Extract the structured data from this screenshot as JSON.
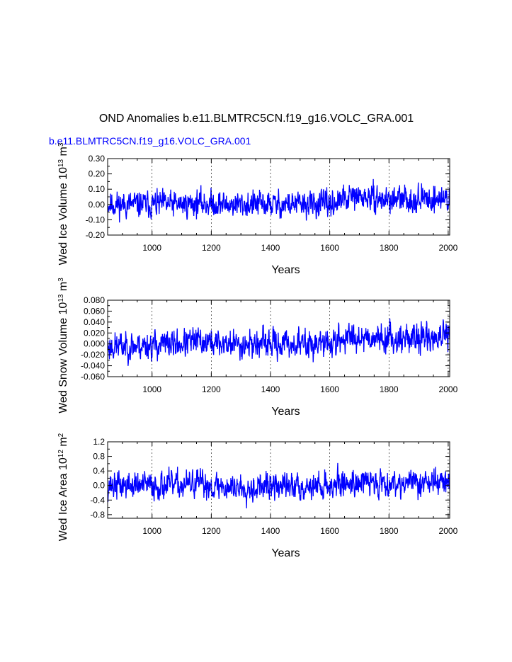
{
  "main_title": "OND Anomalies b.e11.BLMTRC5CN.f19_g16.VOLC_GRA.001",
  "subtitle": "b.e11.BLMTRC5CN.f19_g16.VOLC_GRA.001",
  "colors": {
    "line": "#0000ff",
    "subtitle": "#0000ff",
    "axis": "#000000",
    "grid": "#000000"
  },
  "chart_data": [
    {
      "type": "line",
      "ylabel_base": "Wed Ice Volume 10",
      "ylabel_exp": "13",
      "ylabel_unit": " m",
      "ylabel_unit_exp": "3",
      "xlabel": "Years",
      "xlim": [
        850,
        2005
      ],
      "ylim": [
        -0.2,
        0.3
      ],
      "xticks": [
        "1000",
        "1200",
        "1400",
        "1600",
        "1800",
        "2000"
      ],
      "yticks": [
        "-0.20",
        "-0.10",
        "0.00",
        "0.10",
        "0.20",
        "0.30"
      ],
      "series": [
        {
          "name": "ice_volume",
          "seed": 11,
          "amp": 0.05,
          "trend": [
            [
              850,
              0.0
            ],
            [
              1100,
              0.0
            ],
            [
              1150,
              0.01
            ],
            [
              1250,
              0.0
            ],
            [
              1600,
              0.0
            ],
            [
              1680,
              0.05
            ],
            [
              1800,
              0.03
            ],
            [
              2005,
              0.04
            ]
          ]
        }
      ]
    },
    {
      "type": "line",
      "ylabel_base": "Wed Snow Volume 10",
      "ylabel_exp": "13",
      "ylabel_unit": " m",
      "ylabel_unit_exp": "3",
      "xlabel": "Years",
      "xlim": [
        850,
        2005
      ],
      "ylim": [
        -0.06,
        0.08
      ],
      "xticks": [
        "1000",
        "1200",
        "1400",
        "1600",
        "1800",
        "2000"
      ],
      "yticks": [
        "-0.060",
        "-0.040",
        "-0.020",
        "0.000",
        "0.020",
        "0.040",
        "0.060",
        "0.080"
      ],
      "series": [
        {
          "name": "snow_volume",
          "seed": 23,
          "amp": 0.015,
          "trend": [
            [
              850,
              -0.005
            ],
            [
              1100,
              0.0
            ],
            [
              1150,
              0.005
            ],
            [
              1250,
              0.0
            ],
            [
              1600,
              0.0
            ],
            [
              1680,
              0.015
            ],
            [
              1800,
              0.01
            ],
            [
              2005,
              0.012
            ]
          ]
        }
      ]
    },
    {
      "type": "line",
      "ylabel_base": "Wed Ice Area 10",
      "ylabel_exp": "12",
      "ylabel_unit": " m",
      "ylabel_unit_exp": "2",
      "xlabel": "Years",
      "xlim": [
        850,
        2005
      ],
      "ylim": [
        -0.9,
        1.2
      ],
      "xticks": [
        "1000",
        "1200",
        "1400",
        "1600",
        "1800",
        "2000"
      ],
      "yticks": [
        "-0.8",
        "-0.4",
        "0.0",
        "0.4",
        "0.8",
        "1.2"
      ],
      "series": [
        {
          "name": "ice_area",
          "seed": 37,
          "amp": 0.22,
          "trend": [
            [
              850,
              0.0
            ],
            [
              1100,
              0.0
            ],
            [
              1150,
              0.05
            ],
            [
              1250,
              -0.05
            ],
            [
              1600,
              0.0
            ],
            [
              1680,
              0.1
            ],
            [
              1800,
              0.08
            ],
            [
              2005,
              0.1
            ]
          ]
        }
      ]
    }
  ]
}
